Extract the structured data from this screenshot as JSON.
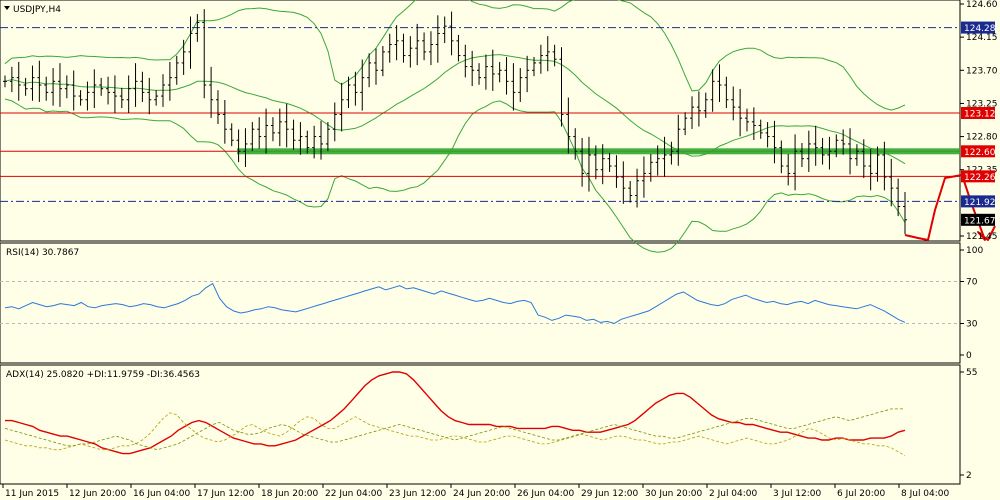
{
  "chart_data": [
    {
      "type": "candlestick",
      "panel": "price",
      "title": "USDJPY,H4",
      "ylim": [
        121.45,
        124.6
      ],
      "yticks": [
        "124.60",
        "124.15",
        "123.70",
        "123.25",
        "122.80",
        "122.35",
        "121.45"
      ],
      "price_labels": [
        {
          "value": 124.28,
          "text": "124.28",
          "color": "#1b2a8f",
          "style": "dash-dot"
        },
        {
          "value": 123.12,
          "text": "123.12",
          "color": "#e00000",
          "style": "solid"
        },
        {
          "value": 122.6,
          "text": "122.60",
          "color": "#e00000",
          "style": "solid"
        },
        {
          "value": 122.26,
          "text": "122.26",
          "color": "#e00000",
          "style": "solid"
        },
        {
          "value": 121.92,
          "text": "121.92",
          "color": "#1b2a8f",
          "style": "dash-dot"
        },
        {
          "value": 121.67,
          "text": "121.67",
          "color": "#000000",
          "style": "current"
        }
      ],
      "support_zone": {
        "value": 122.6,
        "color": "#2ea82e"
      },
      "close_series": [
        123.55,
        123.6,
        123.5,
        123.45,
        123.6,
        123.5,
        123.4,
        123.55,
        123.45,
        123.5,
        123.35,
        123.3,
        123.4,
        123.5,
        123.45,
        123.4,
        123.35,
        123.3,
        123.45,
        123.55,
        123.4,
        123.3,
        123.35,
        123.5,
        123.6,
        123.8,
        123.95,
        124.2,
        124.35,
        123.5,
        123.3,
        123.1,
        122.9,
        122.75,
        122.6,
        122.7,
        122.9,
        122.8,
        122.95,
        122.85,
        123.0,
        122.9,
        122.75,
        122.8,
        122.65,
        122.8,
        122.7,
        122.9,
        123.1,
        123.3,
        123.5,
        123.4,
        123.6,
        123.8,
        123.7,
        123.95,
        124.05,
        124.1,
        123.9,
        124.0,
        124.1,
        123.95,
        124.05,
        124.2,
        124.3,
        124.1,
        123.9,
        123.75,
        123.7,
        123.6,
        123.75,
        123.65,
        123.7,
        123.55,
        123.4,
        123.6,
        123.7,
        123.8,
        123.9,
        123.95,
        123.85,
        123.1,
        122.8,
        122.6,
        122.3,
        122.55,
        122.35,
        122.5,
        122.4,
        122.25,
        122.1,
        122.0,
        122.2,
        122.3,
        122.45,
        122.5,
        122.55,
        122.6,
        122.9,
        123.05,
        123.2,
        123.15,
        123.3,
        123.55,
        123.5,
        123.3,
        123.2,
        123.05,
        123.0,
        122.95,
        122.85,
        122.8,
        122.65,
        122.4,
        122.3,
        122.6,
        122.5,
        122.7,
        122.65,
        122.55,
        122.6,
        122.75,
        122.7,
        122.5,
        122.6,
        122.4,
        122.3,
        122.55,
        122.25,
        122.1,
        121.85,
        121.67
      ],
      "projection_path": [
        [
          905,
          235
        ],
        [
          918,
          238
        ],
        [
          928,
          240
        ],
        [
          935,
          210
        ],
        [
          945,
          178
        ],
        [
          962,
          175
        ],
        [
          972,
          205
        ],
        [
          985,
          240
        ],
        [
          978,
          232
        ],
        [
          988,
          240
        ],
        [
          995,
          226
        ]
      ]
    },
    {
      "type": "line",
      "panel": "rsi",
      "title": "RSI(14) 30.7867",
      "ylim": [
        0,
        100
      ],
      "yticks": [
        "100",
        "70",
        "30",
        "0"
      ],
      "levels": [
        70,
        30
      ],
      "series": [
        {
          "values": [
            45,
            46,
            44,
            47,
            50,
            48,
            46,
            47,
            49,
            48,
            47,
            50,
            46,
            45,
            47,
            48,
            49,
            48,
            46,
            47,
            49,
            48,
            46,
            45,
            47,
            49,
            52,
            56,
            58,
            64,
            68,
            54,
            46,
            42,
            40,
            41,
            43,
            44,
            46,
            45,
            43,
            42,
            41,
            43,
            45,
            47,
            49,
            51,
            53,
            55,
            57,
            59,
            61,
            63,
            65,
            62,
            64,
            66,
            63,
            64,
            62,
            60,
            58,
            61,
            59,
            57,
            55,
            53,
            51,
            52,
            54,
            52,
            50,
            49,
            51,
            52,
            50,
            38,
            36,
            33,
            35,
            38,
            37,
            36,
            33,
            34,
            31,
            32,
            30,
            34,
            36,
            38,
            40,
            42,
            46,
            50,
            54,
            58,
            60,
            56,
            52,
            50,
            48,
            47,
            49,
            53,
            55,
            57,
            54,
            52,
            50,
            51,
            49,
            48,
            50,
            51,
            49,
            52,
            50,
            48,
            47,
            46,
            45,
            44,
            46,
            48,
            45,
            42,
            38,
            34,
            31
          ]
        }
      ]
    },
    {
      "type": "line",
      "panel": "adx",
      "title": "ADX(14) 25.0820 +DI:11.9759 -DI:36.4563",
      "yticks": [
        "55",
        "2"
      ],
      "series": [
        {
          "name": "ADX",
          "color": "#e00000",
          "values": [
            30,
            30,
            29,
            28,
            27,
            25,
            24,
            23,
            22,
            22,
            21,
            20,
            19,
            18,
            16,
            15,
            14,
            13,
            13,
            14,
            15,
            16,
            18,
            20,
            22,
            25,
            27,
            29,
            30,
            29,
            27,
            25,
            23,
            21,
            20,
            19,
            18,
            18,
            17,
            17,
            18,
            19,
            20,
            22,
            24,
            26,
            28,
            30,
            33,
            36,
            40,
            44,
            48,
            51,
            53,
            54,
            55,
            55,
            54,
            51,
            47,
            43,
            39,
            35,
            32,
            30,
            29,
            28,
            28,
            28,
            28,
            27,
            27,
            27,
            26,
            26,
            26,
            26,
            26,
            27,
            27,
            26,
            25,
            25,
            24,
            24,
            24,
            25,
            26,
            27,
            28,
            30,
            33,
            36,
            39,
            41,
            43,
            44,
            44,
            42,
            39,
            36,
            33,
            31,
            30,
            29,
            29,
            28,
            28,
            27,
            26,
            25,
            24,
            24,
            23,
            22,
            21,
            21,
            20,
            20,
            21,
            21,
            20,
            20,
            20,
            21,
            21,
            21,
            22,
            24,
            25
          ]
        },
        {
          "name": "+DI",
          "color": "#b5a000",
          "values": [
            20,
            19,
            18,
            17,
            17,
            16,
            16,
            15,
            15,
            16,
            17,
            18,
            17,
            16,
            15,
            15,
            16,
            17,
            17,
            18,
            20,
            23,
            27,
            31,
            34,
            33,
            29,
            26,
            23,
            21,
            20,
            19,
            20,
            22,
            24,
            27,
            28,
            26,
            24,
            23,
            22,
            24,
            27,
            30,
            32,
            31,
            28,
            26,
            26,
            28,
            30,
            32,
            30,
            28,
            27,
            26,
            25,
            24,
            23,
            22,
            22,
            21,
            20,
            20,
            21,
            22,
            22,
            21,
            20,
            19,
            19,
            20,
            21,
            22,
            22,
            21,
            20,
            19,
            18,
            18,
            19,
            20,
            21,
            22,
            23,
            22,
            21,
            20,
            21,
            22,
            22,
            21,
            20,
            20,
            19,
            18,
            18,
            19,
            19,
            20,
            21,
            22,
            21,
            20,
            19,
            18,
            19,
            20,
            21,
            20,
            19,
            18,
            18,
            19,
            20,
            22,
            24,
            26,
            25,
            23,
            21,
            20,
            21,
            20,
            19,
            18,
            18,
            17,
            17,
            16,
            14,
            12
          ]
        },
        {
          "name": "-DI",
          "color": "#7a8f00",
          "values": [
            26,
            25,
            24,
            23,
            22,
            21,
            20,
            19,
            18,
            17,
            17,
            18,
            18,
            19,
            20,
            21,
            22,
            21,
            20,
            18,
            17,
            16,
            15,
            16,
            17,
            18,
            20,
            22,
            24,
            26,
            28,
            29,
            27,
            25,
            24,
            23,
            23,
            24,
            26,
            27,
            28,
            27,
            25,
            23,
            22,
            21,
            20,
            19,
            19,
            20,
            21,
            22,
            23,
            24,
            25,
            26,
            27,
            28,
            27,
            26,
            25,
            24,
            23,
            22,
            21,
            20,
            21,
            22,
            23,
            24,
            25,
            26,
            27,
            26,
            25,
            24,
            23,
            22,
            21,
            20,
            20,
            21,
            22,
            23,
            24,
            25,
            26,
            27,
            28,
            27,
            26,
            25,
            24,
            23,
            22,
            22,
            21,
            21,
            22,
            23,
            24,
            25,
            26,
            27,
            28,
            29,
            30,
            31,
            31,
            30,
            29,
            28,
            27,
            26,
            26,
            27,
            28,
            29,
            30,
            31,
            32,
            31,
            30,
            31,
            32,
            33,
            34,
            35,
            36,
            36,
            36
          ]
        }
      ]
    }
  ],
  "xaxis": {
    "labels": [
      "11 Jun 2015",
      "12 Jun 20:00",
      "16 Jun 04:00",
      "17 Jun 12:00",
      "18 Jun 20:00",
      "22 Jun 04:00",
      "23 Jun 12:00",
      "24 Jun 20:00",
      "26 Jun 04:00",
      "29 Jun 12:00",
      "30 Jun 20:00",
      "2 Jul 04:00",
      "3 Jul 12:00",
      "6 Jul 20:00",
      "8 Jul 04:00"
    ]
  },
  "colors": {
    "background": "#ffffe8",
    "candle": "#000000",
    "bollinger": "#3aa83a",
    "rsi": "#2a78d8",
    "projection": "#e00000"
  }
}
